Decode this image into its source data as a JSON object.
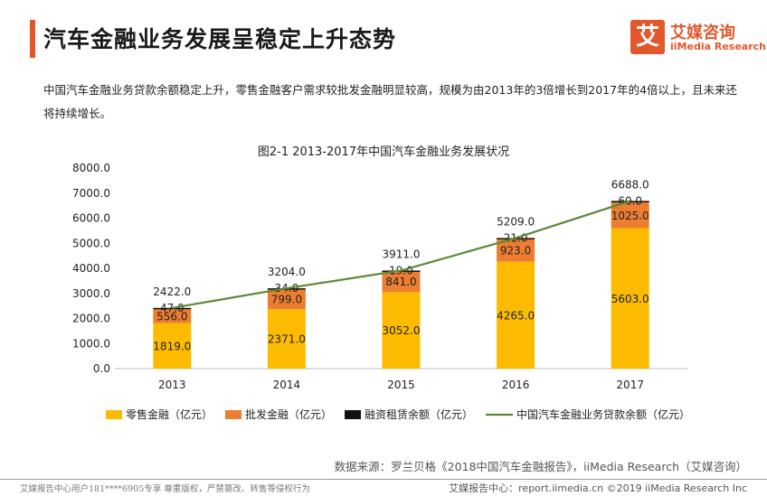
{
  "header": {
    "title": "汽车金融业务发展呈稳定上升态势",
    "logo_glyph": "艾",
    "logo_cn": "艾媒咨询",
    "logo_en": "iiMedia Research",
    "accent_color": "#e2582c"
  },
  "description": "中国汽车金融业务贷款余额稳定上升，零售金融客户需求较批发金融明显较高，规模为由2013年的3倍增长到2017年的4倍以上，且未来还将持续增长。",
  "chart_data": {
    "type": "bar",
    "title": "图2-1 2013-2017年中国汽车金融业务发展状况",
    "categories": [
      "2013",
      "2014",
      "2015",
      "2016",
      "2017"
    ],
    "ylim": [
      0,
      8000
    ],
    "yticks": [
      "0.0",
      "1000.0",
      "2000.0",
      "3000.0",
      "4000.0",
      "5000.0",
      "6000.0",
      "7000.0",
      "8000.0"
    ],
    "series": [
      {
        "name": "零售金融（亿元）",
        "kind": "bar",
        "color": "#fdbb00",
        "values": [
          1819.0,
          2371.0,
          3052.0,
          4265.0,
          5603.0
        ],
        "labels": [
          "1819.0",
          "2371.0",
          "3052.0",
          "4265.0",
          "5603.0"
        ]
      },
      {
        "name": "批发金融（亿元）",
        "kind": "bar",
        "color": "#ec7d31",
        "values": [
          556.0,
          799.0,
          841.0,
          923.0,
          1025.0
        ],
        "labels": [
          "556.0",
          "799.0",
          "841.0",
          "923.0",
          "1025.0"
        ]
      },
      {
        "name": "融资租赁余额（亿元）",
        "kind": "bar",
        "color": "#111111",
        "values": [
          47.0,
          34.0,
          19.0,
          21.0,
          60.0
        ],
        "labels": [
          "47.0",
          "34.0",
          "19.0",
          "21.0",
          "60.0"
        ]
      },
      {
        "name": "中国汽车金融业务贷款余额（亿元）",
        "kind": "line",
        "color": "#5b8a36",
        "values": [
          2422.0,
          3204.0,
          3911.0,
          5209.0,
          6688.0
        ],
        "labels": [
          "2422.0",
          "3204.0",
          "3911.0",
          "5209.0",
          "6688.0"
        ]
      }
    ],
    "legend_position": "bottom"
  },
  "source": "数据来源：罗兰贝格《2018中国汽车金融报告》，iiMedia Research（艾媒咨询）",
  "footer": {
    "left": "艾媒报告中心用户181****6905专享 尊重版权，严禁篡改、转售等侵权行为",
    "right": "艾媒报告中心：report.iimedia.cn  ©2019  iiMedia Research  Inc"
  }
}
